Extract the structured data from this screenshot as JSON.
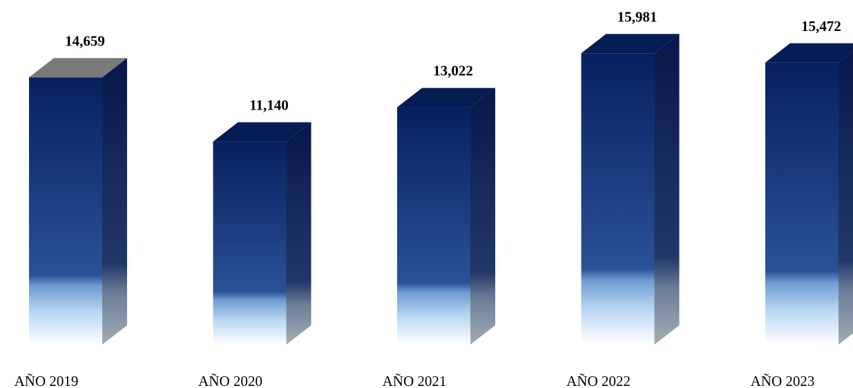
{
  "chart_data": {
    "type": "bar",
    "style": "3d-column",
    "categories": [
      "AÑO 2019",
      "AÑO 2020",
      "AÑO 2021",
      "AÑO 2022",
      "AÑO 2023"
    ],
    "values": [
      14659,
      11140,
      13022,
      15981,
      15472
    ],
    "value_labels": [
      "14,659",
      "11,140",
      "13,022",
      "15,981",
      "15,472"
    ],
    "title": "",
    "xlabel": "",
    "ylabel": "",
    "ylim": [
      0,
      16000
    ],
    "grid": false,
    "legend": "none"
  },
  "colors": {
    "bar_front_top": "#07205f",
    "bar_front_mid": "#2a5196",
    "bar_front_fade": "#b9d7f2",
    "bar_side_top": "#07184a",
    "bar_side_bottom": "#9aa6b2",
    "bar_top_face": "#061c55",
    "bar_top_face_first": "#7a7a7a"
  }
}
